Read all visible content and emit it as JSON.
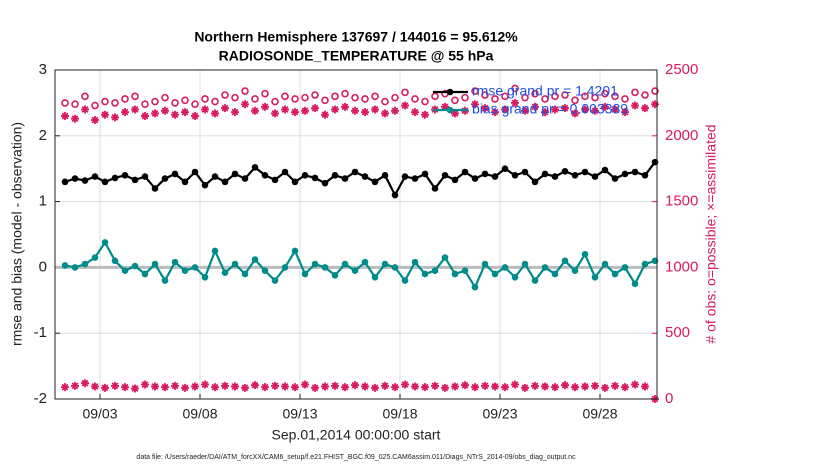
{
  "chart_data": {
    "type": "line",
    "title": [
      "Northern Hemisphere 137697 / 144016 = 95.612%",
      "RADIOSONDE_TEMPERATURE @ 55 hPa"
    ],
    "xlabel": "Sep.01,2014 00:00:00 start",
    "ylabel": "rmse and bias (model - observation)",
    "y2label": "# of obs: o=possible; ×=assimilated",
    "footnote": "data file: /Users/raeder/DAI/ATM_forcXX/CAM6_setup/f.e21.FHIST_BGC.f09_025.CAM6assim.011/Diags_NTrS_2014-09/obs_diag_output.nc",
    "grid": true,
    "legend": "upper right",
    "xlim": [
      -0.25,
      29.85
    ],
    "xticks": [
      {
        "value": 2,
        "label": "09/03"
      },
      {
        "value": 7,
        "label": "09/08"
      },
      {
        "value": 12,
        "label": "09/13"
      },
      {
        "value": 17,
        "label": "09/18"
      },
      {
        "value": 22,
        "label": "09/23"
      },
      {
        "value": 27,
        "label": "09/28"
      }
    ],
    "ylim": [
      -2,
      3
    ],
    "yticks": [
      -2,
      -1,
      0,
      1,
      2,
      3
    ],
    "y2lim": [
      0,
      2500
    ],
    "y2ticks": [
      0,
      500,
      1000,
      1500,
      2000,
      2500
    ],
    "x": [
      0.25,
      0.75,
      1.25,
      1.75,
      2.25,
      2.75,
      3.25,
      3.75,
      4.25,
      4.75,
      5.25,
      5.75,
      6.25,
      6.75,
      7.25,
      7.75,
      8.25,
      8.75,
      9.25,
      9.75,
      10.25,
      10.75,
      11.25,
      11.75,
      12.25,
      12.75,
      13.25,
      13.75,
      14.25,
      14.75,
      15.25,
      15.75,
      16.25,
      16.75,
      17.25,
      17.75,
      18.25,
      18.75,
      19.25,
      19.75,
      20.25,
      20.75,
      21.25,
      21.75,
      22.25,
      22.75,
      23.25,
      23.75,
      24.25,
      24.75,
      25.25,
      25.75,
      26.25,
      26.75,
      27.25,
      27.75,
      28.25,
      28.75,
      29.25,
      29.75
    ],
    "series": [
      {
        "name": "rmse grand pr = 1.4201",
        "color": "#000000",
        "axis": "y",
        "marker": "dot",
        "line": true,
        "values": [
          1.3,
          1.35,
          1.32,
          1.38,
          1.3,
          1.36,
          1.4,
          1.33,
          1.38,
          1.2,
          1.35,
          1.42,
          1.3,
          1.45,
          1.25,
          1.38,
          1.3,
          1.42,
          1.35,
          1.52,
          1.4,
          1.33,
          1.45,
          1.3,
          1.4,
          1.36,
          1.28,
          1.4,
          1.35,
          1.45,
          1.38,
          1.3,
          1.4,
          1.1,
          1.38,
          1.35,
          1.42,
          1.2,
          1.4,
          1.33,
          1.45,
          1.35,
          1.42,
          1.38,
          1.5,
          1.4,
          1.45,
          1.3,
          1.42,
          1.38,
          1.46,
          1.4,
          1.45,
          1.38,
          1.48,
          1.35,
          1.42,
          1.45,
          1.4,
          1.6
        ]
      },
      {
        "name": "bias grand pr = 0.003389",
        "color": "#008b8b",
        "axis": "y",
        "marker": "dot",
        "line": true,
        "values": [
          0.03,
          0.0,
          0.05,
          0.15,
          0.38,
          0.1,
          -0.05,
          0.02,
          -0.1,
          0.05,
          -0.2,
          0.08,
          -0.05,
          0.0,
          -0.15,
          0.25,
          -0.08,
          0.05,
          -0.1,
          0.12,
          -0.05,
          -0.2,
          0.0,
          0.25,
          -0.1,
          0.05,
          0.0,
          -0.12,
          0.05,
          -0.05,
          0.08,
          -0.15,
          0.05,
          0.0,
          -0.2,
          0.08,
          -0.1,
          -0.05,
          0.15,
          -0.1,
          -0.05,
          -0.3,
          0.05,
          -0.1,
          0.0,
          -0.15,
          0.05,
          -0.2,
          0.0,
          -0.1,
          0.1,
          -0.05,
          0.2,
          -0.15,
          0.05,
          -0.1,
          0.0,
          -0.25,
          0.05,
          0.1
        ]
      },
      {
        "color": "#d81b60",
        "axis": "y2",
        "marker": "o",
        "line": false,
        "values": [
          2250,
          2240,
          2300,
          2230,
          2260,
          2250,
          2280,
          2300,
          2240,
          2260,
          2290,
          2250,
          2270,
          2240,
          2280,
          2260,
          2310,
          2290,
          2340,
          2280,
          2320,
          2260,
          2300,
          2280,
          2290,
          2310,
          2270,
          2300,
          2320,
          2290,
          2280,
          2300,
          2260,
          2290,
          2330,
          2280,
          2260,
          2300,
          2320,
          2270,
          2290,
          2340,
          2310,
          2280,
          2300,
          2360,
          2290,
          2320,
          2280,
          2300,
          2310,
          2270,
          2300,
          2290,
          2320,
          2300,
          2280,
          2330,
          2310,
          2340
        ]
      },
      {
        "color": "#d81b60",
        "axis": "y2",
        "marker": "*",
        "line": false,
        "values": [
          2150,
          2130,
          2200,
          2120,
          2160,
          2140,
          2180,
          2200,
          2150,
          2170,
          2190,
          2160,
          2180,
          2150,
          2200,
          2170,
          2210,
          2180,
          2240,
          2190,
          2220,
          2170,
          2200,
          2180,
          2190,
          2210,
          2160,
          2200,
          2220,
          2190,
          2180,
          2200,
          2170,
          2190,
          2230,
          2180,
          2160,
          2200,
          2220,
          2170,
          2190,
          2240,
          2210,
          2180,
          2200,
          2250,
          2190,
          2220,
          2180,
          2200,
          2210,
          2170,
          2200,
          2190,
          2220,
          2200,
          2180,
          2230,
          2210,
          2240
        ]
      },
      {
        "color": "#d81b60",
        "axis": "y2",
        "marker": "*",
        "line": false,
        "values": [
          90,
          100,
          120,
          95,
          85,
          100,
          90,
          80,
          110,
          95,
          90,
          100,
          85,
          95,
          110,
          90,
          100,
          95,
          85,
          105,
          90,
          100,
          95,
          90,
          110,
          85,
          95,
          100,
          90,
          105,
          95,
          85,
          100,
          90,
          110,
          95,
          90,
          100,
          85,
          95,
          105,
          90,
          100,
          95,
          90,
          110,
          85,
          100,
          95,
          90,
          105,
          90,
          95,
          100,
          85,
          100,
          90,
          110,
          95,
          0
        ]
      }
    ]
  }
}
